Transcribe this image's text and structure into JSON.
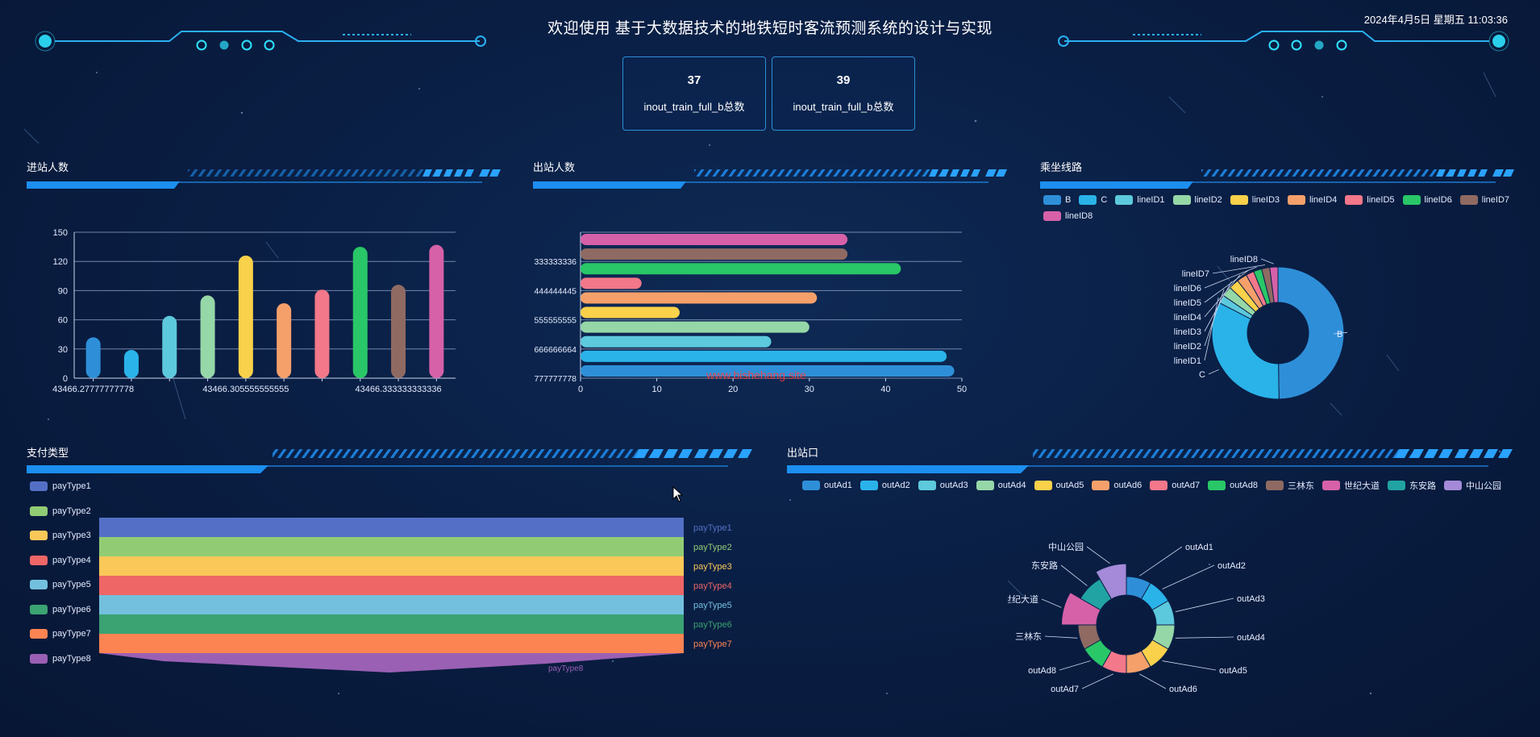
{
  "header": {
    "title": "欢迎使用 基于大数据技术的地铁短时客流预测系统的设计与实现",
    "datetime": "2024年4月5日 星期五 11:03:36"
  },
  "kpis": [
    {
      "value": "37",
      "label": "inout_train_full_b总数"
    },
    {
      "value": "39",
      "label": "inout_train_full_b总数"
    }
  ],
  "panels": {
    "in_count": "进站人数",
    "out_count": "出站人数",
    "line": "乘坐线路",
    "pay_type": "支付类型",
    "exit": "出站口"
  },
  "watermark": "www.bishehang.site",
  "chart_data": [
    {
      "id": "in",
      "type": "bar",
      "categories": [
        "43466.27777777778",
        "",
        "",
        "",
        "43466.305555555555",
        "",
        "",
        "",
        "43466.333333333336",
        ""
      ],
      "tick_labels": [
        "43466.27777777778",
        "43466.305555555555",
        "43466.333333333336"
      ],
      "values": [
        42,
        29,
        64,
        85,
        126,
        77,
        91,
        135,
        96,
        137
      ],
      "colors": [
        "#2e8fd8",
        "#2ab3e9",
        "#5dc9dc",
        "#96d7a8",
        "#f9d14a",
        "#f5a06a",
        "#f2788a",
        "#29c767",
        "#8f6a62",
        "#d661a8"
      ],
      "ylim": [
        0,
        150
      ],
      "yticks": [
        0,
        30,
        60,
        90,
        120,
        150
      ]
    },
    {
      "id": "out",
      "type": "bar",
      "orientation": "horizontal",
      "tick_labels": [
        "333333336",
        "444444445",
        "555555555",
        "666666664",
        "777777778"
      ],
      "values": [
        49,
        48,
        25,
        30,
        13,
        31,
        8,
        42,
        35,
        35
      ],
      "colors": [
        "#2e8fd8",
        "#2ab3e9",
        "#5dc9dc",
        "#96d7a8",
        "#f9d14a",
        "#f5a06a",
        "#f2788a",
        "#29c767",
        "#8f6a62",
        "#d661a8"
      ],
      "xlim": [
        0,
        50
      ],
      "xticks": [
        0,
        10,
        20,
        30,
        40,
        50
      ]
    },
    {
      "id": "line",
      "type": "pie",
      "labels": [
        "B",
        "C",
        "lineID1",
        "lineID2",
        "lineID3",
        "lineID4",
        "lineID5",
        "lineID6",
        "lineID7",
        "lineID8"
      ],
      "values": [
        50,
        33,
        2,
        2.5,
        2.5,
        2.5,
        2,
        2,
        2,
        2
      ],
      "colors": [
        "#2e8fd8",
        "#2ab3e9",
        "#5dc9dc",
        "#96d7a8",
        "#f9d14a",
        "#f5a06a",
        "#f2788a",
        "#29c767",
        "#8f6a62",
        "#d661a8"
      ]
    },
    {
      "id": "pay",
      "type": "area",
      "labels": [
        "payType1",
        "payType2",
        "payType3",
        "payType4",
        "payType5",
        "payType6",
        "payType7",
        "payType8"
      ],
      "values": [
        1,
        1,
        1,
        1,
        1,
        1,
        1,
        1
      ],
      "colors": [
        "#5470c6",
        "#91cc75",
        "#fac858",
        "#ee6666",
        "#73c0de",
        "#3ba272",
        "#fc8452",
        "#9a60b4"
      ]
    },
    {
      "id": "exit",
      "type": "pie",
      "labels": [
        "outAd1",
        "outAd2",
        "outAd3",
        "outAd4",
        "outAd5",
        "outAd6",
        "outAd7",
        "outAd8",
        "三林东",
        "世纪大道",
        "东安路",
        "中山公园"
      ],
      "values": [
        1,
        1,
        1,
        1,
        1,
        1,
        1,
        1,
        1,
        1.8,
        1.2,
        1.6
      ],
      "colors": [
        "#2e8fd8",
        "#2ab3e9",
        "#5dc9dc",
        "#96d7a8",
        "#f9d14a",
        "#f5a06a",
        "#f2788a",
        "#29c767",
        "#8f6a62",
        "#d661a8",
        "#22a3a3",
        "#a48ad8"
      ]
    }
  ]
}
